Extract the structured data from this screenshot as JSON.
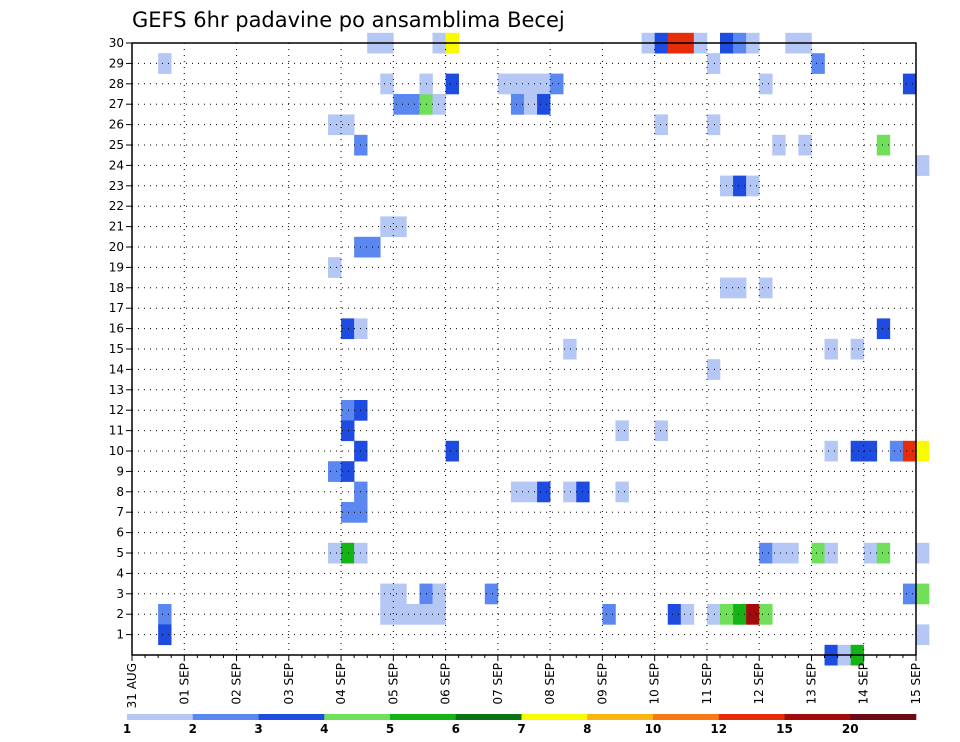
{
  "chart_data": {
    "type": "heatmap",
    "title": "GEFS 6hr padavine po ansamblima Becej",
    "x_tick_labels": [
      "31 AUG",
      "01 SEP",
      "02 SEP",
      "03 SEP",
      "04 SEP",
      "05 SEP",
      "06 SEP",
      "07 SEP",
      "08 SEP",
      "09 SEP",
      "10 SEP",
      "11 SEP",
      "12 SEP",
      "13 SEP",
      "14 SEP",
      "15 SEP"
    ],
    "y_tick_labels": [
      "1",
      "2",
      "3",
      "4",
      "5",
      "6",
      "7",
      "8",
      "9",
      "10",
      "11",
      "12",
      "13",
      "14",
      "15",
      "16",
      "17",
      "18",
      "19",
      "20",
      "21",
      "22",
      "23",
      "24",
      "25",
      "26",
      "27",
      "28",
      "29",
      "30"
    ],
    "x_step_hours": 6,
    "y_range": [
      0,
      30
    ],
    "grid": true,
    "legend_placement": "bottom",
    "legend_labels": [
      "1",
      "2",
      "3",
      "4",
      "5",
      "6",
      "7",
      "8",
      "10",
      "12",
      "15",
      "20"
    ],
    "legend_colors": [
      "#b4c7f5",
      "#5a87f0",
      "#1f4ce0",
      "#70e05a",
      "#14b414",
      "#0a7314",
      "#fafa00",
      "#fab414",
      "#fa7814",
      "#e62d0a",
      "#a50a0a",
      "#6e0a14"
    ],
    "cells": [
      {
        "t": "31 AUG 12Z",
        "m": 29,
        "v": 1
      },
      {
        "t": "31 AUG 12Z",
        "m": 2,
        "v": 2
      },
      {
        "t": "31 AUG 12Z",
        "m": 1,
        "v": 3
      },
      {
        "t": "03 SEP 18Z",
        "m": 26,
        "v": 1
      },
      {
        "t": "04 SEP 00Z",
        "m": 26,
        "v": 1
      },
      {
        "t": "03 SEP 18Z",
        "m": 19,
        "v": 1
      },
      {
        "t": "03 SEP 18Z",
        "m": 9,
        "v": 2
      },
      {
        "t": "03 SEP 18Z",
        "m": 5,
        "v": 1
      },
      {
        "t": "04 SEP 00Z",
        "m": 16,
        "v": 3
      },
      {
        "t": "04 SEP 00Z",
        "m": 12,
        "v": 2
      },
      {
        "t": "04 SEP 00Z",
        "m": 11,
        "v": 3
      },
      {
        "t": "04 SEP 00Z",
        "m": 9,
        "v": 3
      },
      {
        "t": "04 SEP 00Z",
        "m": 7,
        "v": 2
      },
      {
        "t": "04 SEP 00Z",
        "m": 5,
        "v": 5
      },
      {
        "t": "04 SEP 06Z",
        "m": 25,
        "v": 2
      },
      {
        "t": "04 SEP 06Z",
        "m": 20,
        "v": 2
      },
      {
        "t": "04 SEP 12Z",
        "m": 20,
        "v": 2
      },
      {
        "t": "04 SEP 06Z",
        "m": 16,
        "v": 1
      },
      {
        "t": "04 SEP 06Z",
        "m": 12,
        "v": 3
      },
      {
        "t": "04 SEP 06Z",
        "m": 10,
        "v": 3
      },
      {
        "t": "04 SEP 06Z",
        "m": 8,
        "v": 2
      },
      {
        "t": "04 SEP 06Z",
        "m": 7,
        "v": 2
      },
      {
        "t": "04 SEP 06Z",
        "m": 5,
        "v": 1
      },
      {
        "t": "04 SEP 12Z",
        "m": 30,
        "v": 1
      },
      {
        "t": "04 SEP 18Z",
        "m": 30,
        "v": 1
      },
      {
        "t": "04 SEP 18Z",
        "m": 28,
        "v": 1
      },
      {
        "t": "05 SEP 00Z",
        "m": 27,
        "v": 2
      },
      {
        "t": "05 SEP 06Z",
        "m": 27,
        "v": 2
      },
      {
        "t": "05 SEP 12Z",
        "m": 27,
        "v": 4
      },
      {
        "t": "05 SEP 18Z",
        "m": 27,
        "v": 1
      },
      {
        "t": "05 SEP 12Z",
        "m": 28,
        "v": 1
      },
      {
        "t": "04 SEP 18Z",
        "m": 21,
        "v": 1
      },
      {
        "t": "05 SEP 00Z",
        "m": 21,
        "v": 1
      },
      {
        "t": "04 SEP 18Z",
        "m": 3,
        "v": 1
      },
      {
        "t": "05 SEP 00Z",
        "m": 3,
        "v": 1
      },
      {
        "t": "05 SEP 12Z",
        "m": 3,
        "v": 2
      },
      {
        "t": "05 SEP 18Z",
        "m": 3,
        "v": 1
      },
      {
        "t": "04 SEP 18Z",
        "m": 2,
        "v": 1
      },
      {
        "t": "05 SEP 00Z",
        "m": 2,
        "v": 1
      },
      {
        "t": "05 SEP 06Z",
        "m": 2,
        "v": 1
      },
      {
        "t": "05 SEP 12Z",
        "m": 2,
        "v": 1
      },
      {
        "t": "05 SEP 18Z",
        "m": 2,
        "v": 1
      },
      {
        "t": "05 SEP 18Z",
        "m": 30,
        "v": 1
      },
      {
        "t": "06 SEP 00Z",
        "m": 30,
        "v": 7
      },
      {
        "t": "06 SEP 00Z",
        "m": 28,
        "v": 3
      },
      {
        "t": "06 SEP 00Z",
        "m": 10,
        "v": 3
      },
      {
        "t": "06 SEP 18Z",
        "m": 3,
        "v": 2
      },
      {
        "t": "07 SEP 00Z",
        "m": 28,
        "v": 1
      },
      {
        "t": "07 SEP 06Z",
        "m": 28,
        "v": 1
      },
      {
        "t": "07 SEP 12Z",
        "m": 28,
        "v": 1
      },
      {
        "t": "07 SEP 18Z",
        "m": 28,
        "v": 1
      },
      {
        "t": "08 SEP 00Z",
        "m": 28,
        "v": 2
      },
      {
        "t": "07 SEP 06Z",
        "m": 27,
        "v": 2
      },
      {
        "t": "07 SEP 12Z",
        "m": 27,
        "v": 1
      },
      {
        "t": "07 SEP 18Z",
        "m": 27,
        "v": 3
      },
      {
        "t": "07 SEP 06Z",
        "m": 8,
        "v": 1
      },
      {
        "t": "07 SEP 12Z",
        "m": 8,
        "v": 1
      },
      {
        "t": "07 SEP 18Z",
        "m": 8,
        "v": 3
      },
      {
        "t": "08 SEP 06Z",
        "m": 15,
        "v": 1
      },
      {
        "t": "08 SEP 06Z",
        "m": 8,
        "v": 1
      },
      {
        "t": "08 SEP 12Z",
        "m": 8,
        "v": 3
      },
      {
        "t": "09 SEP 00Z",
        "m": 2,
        "v": 2
      },
      {
        "t": "09 SEP 06Z",
        "m": 11,
        "v": 1
      },
      {
        "t": "09 SEP 06Z",
        "m": 8,
        "v": 1
      },
      {
        "t": "09 SEP 18Z",
        "m": 30,
        "v": 1
      },
      {
        "t": "10 SEP 00Z",
        "m": 30,
        "v": 3
      },
      {
        "t": "10 SEP 06Z",
        "m": 30,
        "v": 12
      },
      {
        "t": "10 SEP 12Z",
        "m": 30,
        "v": 12
      },
      {
        "t": "10 SEP 18Z",
        "m": 30,
        "v": 1
      },
      {
        "t": "10 SEP 00Z",
        "m": 26,
        "v": 1
      },
      {
        "t": "10 SEP 00Z",
        "m": 11,
        "v": 1
      },
      {
        "t": "10 SEP 06Z",
        "m": 2,
        "v": 3
      },
      {
        "t": "10 SEP 12Z",
        "m": 2,
        "v": 1
      },
      {
        "t": "11 SEP 00Z",
        "m": 29,
        "v": 1
      },
      {
        "t": "11 SEP 00Z",
        "m": 26,
        "v": 1
      },
      {
        "t": "11 SEP 00Z",
        "m": 14,
        "v": 1
      },
      {
        "t": "11 SEP 00Z",
        "m": 2,
        "v": 1
      },
      {
        "t": "11 SEP 06Z",
        "m": 30,
        "v": 3
      },
      {
        "t": "11 SEP 12Z",
        "m": 30,
        "v": 2
      },
      {
        "t": "11 SEP 18Z",
        "m": 30,
        "v": 1
      },
      {
        "t": "11 SEP 06Z",
        "m": 23,
        "v": 1
      },
      {
        "t": "11 SEP 12Z",
        "m": 23,
        "v": 3
      },
      {
        "t": "11 SEP 18Z",
        "m": 23,
        "v": 1
      },
      {
        "t": "11 SEP 06Z",
        "m": 18,
        "v": 1
      },
      {
        "t": "11 SEP 12Z",
        "m": 18,
        "v": 1
      },
      {
        "t": "11 SEP 06Z",
        "m": 2,
        "v": 4
      },
      {
        "t": "11 SEP 12Z",
        "m": 2,
        "v": 5
      },
      {
        "t": "11 SEP 18Z",
        "m": 2,
        "v": 15
      },
      {
        "t": "12 SEP 00Z",
        "m": 2,
        "v": 4
      },
      {
        "t": "12 SEP 00Z",
        "m": 28,
        "v": 1
      },
      {
        "t": "12 SEP 00Z",
        "m": 18,
        "v": 1
      },
      {
        "t": "12 SEP 00Z",
        "m": 5,
        "v": 2
      },
      {
        "t": "12 SEP 06Z",
        "m": 5,
        "v": 1
      },
      {
        "t": "12 SEP 12Z",
        "m": 5,
        "v": 1
      },
      {
        "t": "12 SEP 06Z",
        "m": 25,
        "v": 1
      },
      {
        "t": "12 SEP 12Z",
        "m": 30,
        "v": 1
      },
      {
        "t": "12 SEP 18Z",
        "m": 30,
        "v": 1
      },
      {
        "t": "12 SEP 18Z",
        "m": 25,
        "v": 1
      },
      {
        "t": "13 SEP 00Z",
        "m": 29,
        "v": 2
      },
      {
        "t": "13 SEP 00Z",
        "m": 5,
        "v": 4
      },
      {
        "t": "13 SEP 06Z",
        "m": 15,
        "v": 1
      },
      {
        "t": "13 SEP 06Z",
        "m": 10,
        "v": 1
      },
      {
        "t": "13 SEP 06Z",
        "m": 5,
        "v": 1
      },
      {
        "t": "13 SEP 06Z",
        "m": 0,
        "v": 3
      },
      {
        "t": "13 SEP 12Z",
        "m": 0,
        "v": 1
      },
      {
        "t": "13 SEP 18Z",
        "m": 0,
        "v": 5
      },
      {
        "t": "13 SEP 18Z",
        "m": 15,
        "v": 1
      },
      {
        "t": "13 SEP 18Z",
        "m": 10,
        "v": 3
      },
      {
        "t": "14 SEP 00Z",
        "m": 10,
        "v": 3
      },
      {
        "t": "14 SEP 00Z",
        "m": 5,
        "v": 1
      },
      {
        "t": "14 SEP 06Z",
        "m": 5,
        "v": 4
      },
      {
        "t": "14 SEP 06Z",
        "m": 25,
        "v": 4
      },
      {
        "t": "14 SEP 06Z",
        "m": 16,
        "v": 3
      },
      {
        "t": "14 SEP 12Z",
        "m": 10,
        "v": 2
      },
      {
        "t": "14 SEP 18Z",
        "m": 10,
        "v": 12
      },
      {
        "t": "15 SEP 00Z",
        "m": 10,
        "v": 7
      },
      {
        "t": "14 SEP 18Z",
        "m": 28,
        "v": 3
      },
      {
        "t": "14 SEP 18Z",
        "m": 3,
        "v": 2
      },
      {
        "t": "15 SEP 00Z",
        "m": 3,
        "v": 4
      },
      {
        "t": "15 SEP 00Z",
        "m": 24,
        "v": 1
      },
      {
        "t": "15 SEP 00Z",
        "m": 5,
        "v": 1
      },
      {
        "t": "15 SEP 00Z",
        "m": 1,
        "v": 1
      }
    ]
  }
}
